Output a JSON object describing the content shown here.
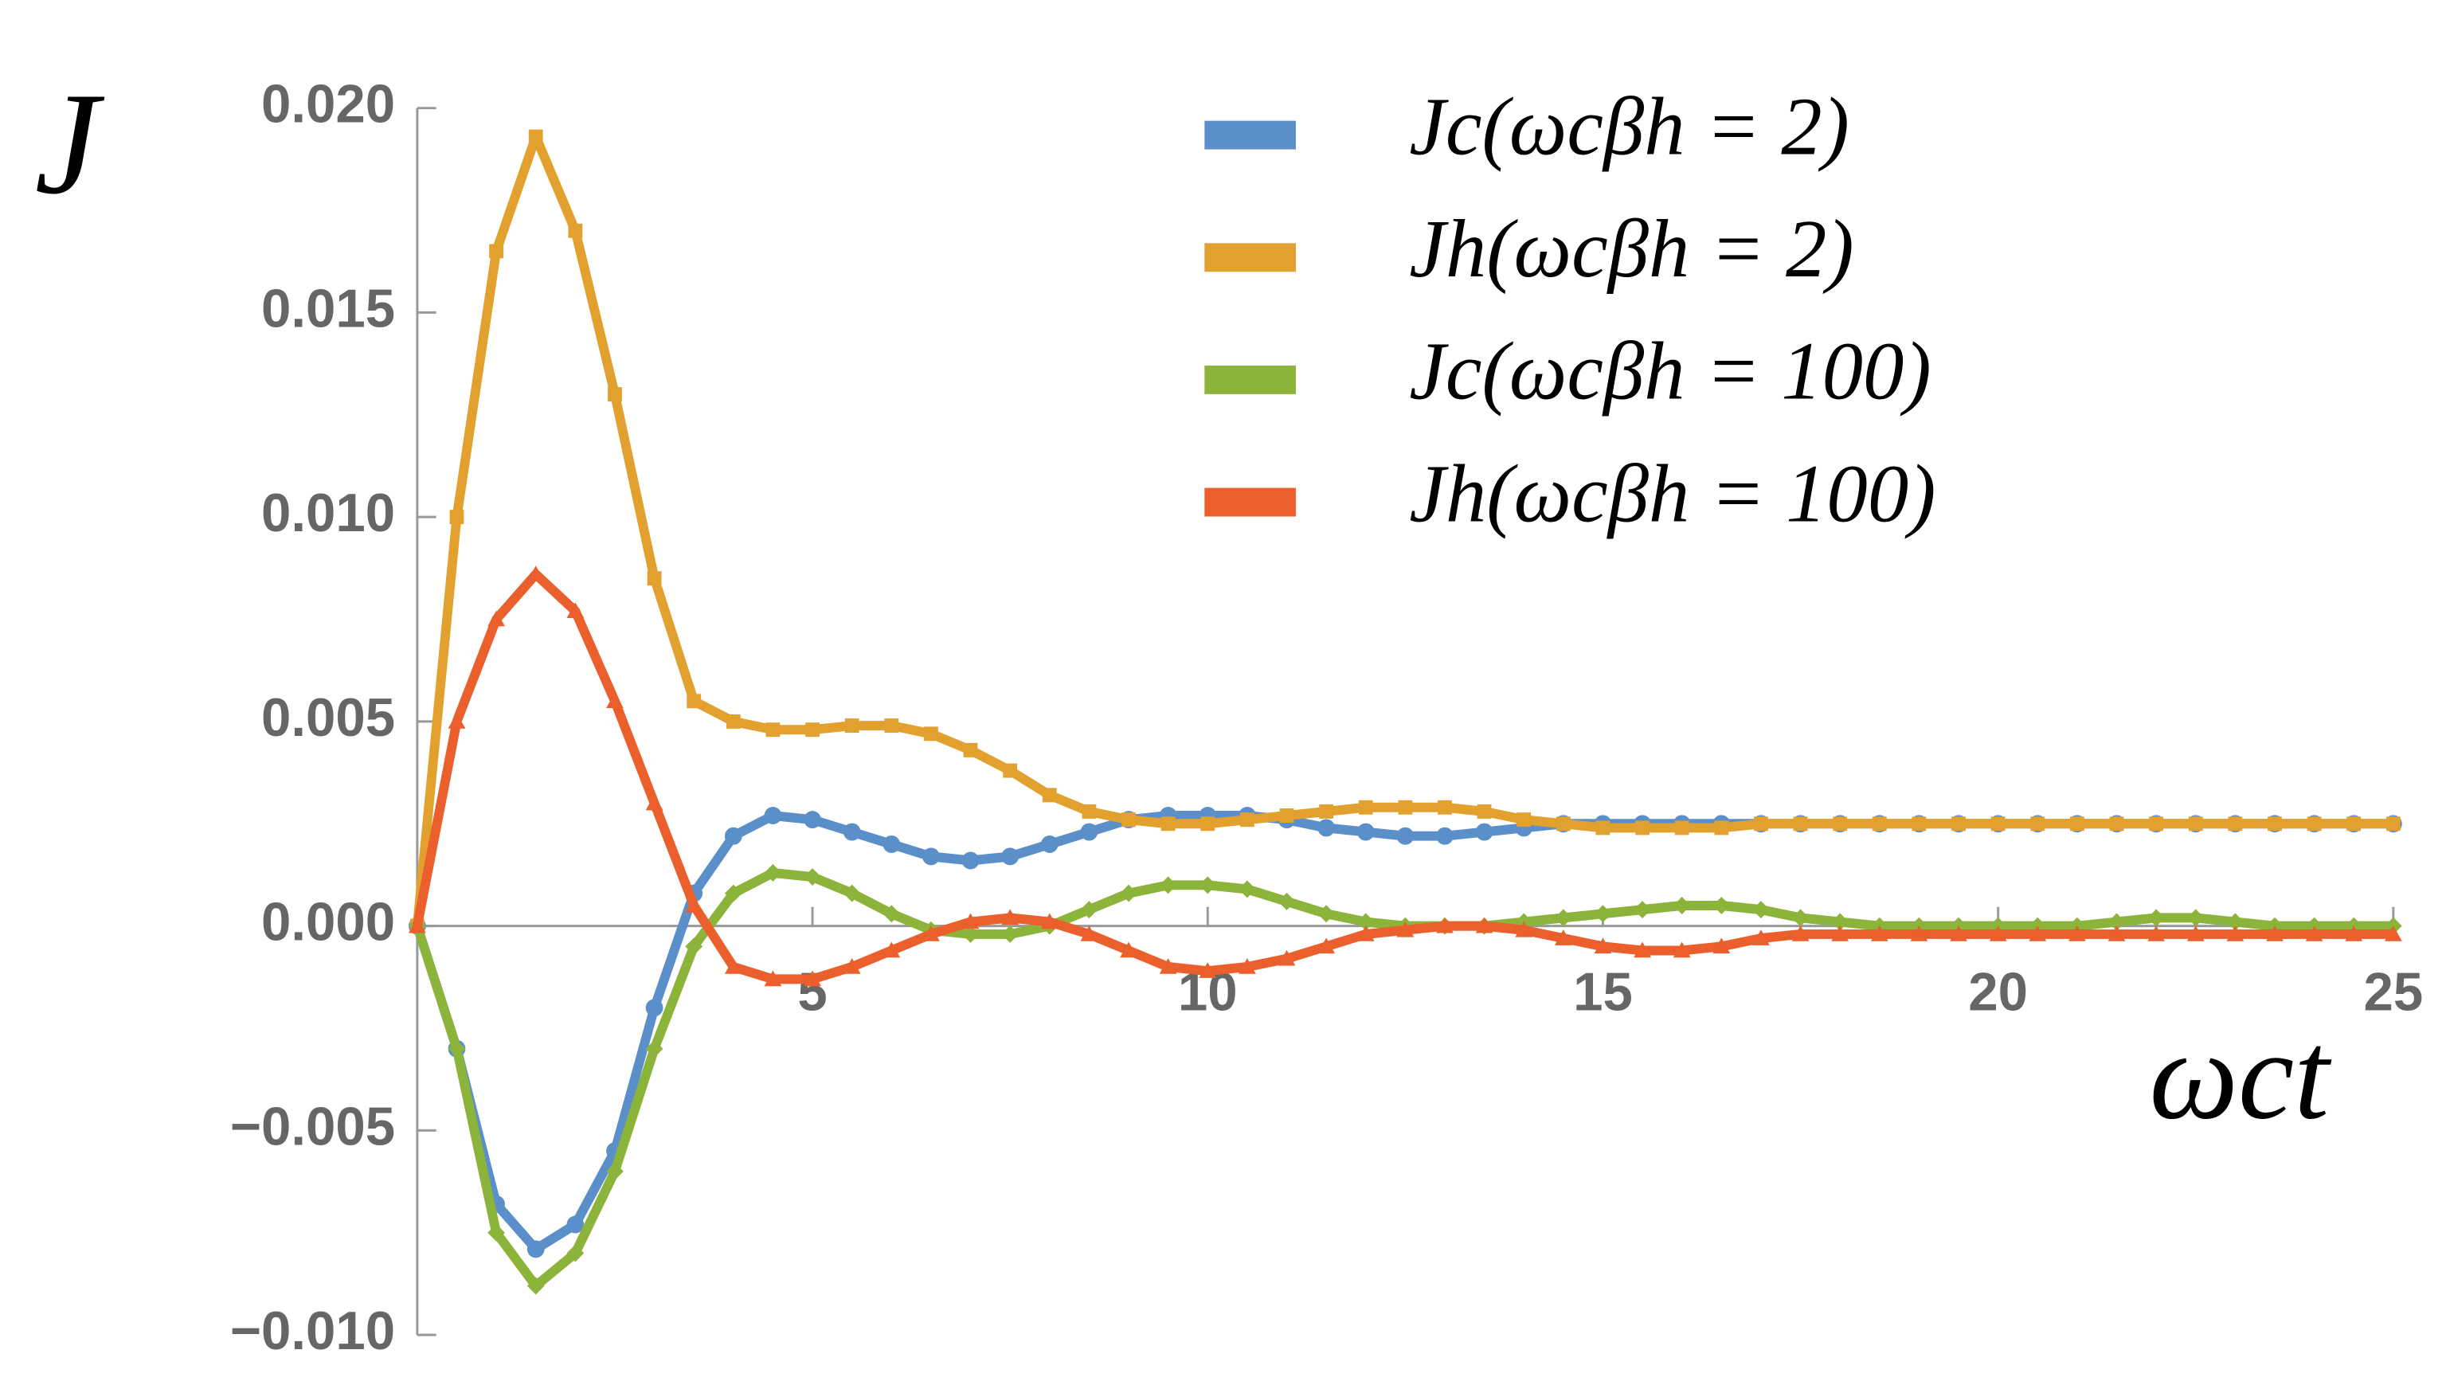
{
  "chart_data": {
    "type": "line",
    "ylabel": "J",
    "xlabel": "ωct",
    "x": [
      0,
      0.5,
      1,
      1.5,
      2,
      2.5,
      3,
      3.5,
      4,
      4.5,
      5,
      5.5,
      6,
      6.5,
      7,
      7.5,
      8,
      8.5,
      9,
      9.5,
      10,
      10.5,
      11,
      11.5,
      12,
      12.5,
      13,
      13.5,
      14,
      14.5,
      15,
      15.5,
      16,
      16.5,
      17,
      17.5,
      18,
      18.5,
      19,
      19.5,
      20,
      20.5,
      21,
      21.5,
      22,
      22.5,
      23,
      23.5,
      24,
      24.5,
      25
    ],
    "series": [
      {
        "name": "Jc(ωcβh = 2)",
        "color": "#5b8fc9",
        "marker": "circle",
        "values": [
          0,
          -0.003,
          -0.0068,
          -0.0079,
          -0.0073,
          -0.0055,
          -0.002,
          0.0008,
          0.0022,
          0.0027,
          0.0026,
          0.0023,
          0.002,
          0.0017,
          0.0016,
          0.0017,
          0.002,
          0.0023,
          0.0026,
          0.0027,
          0.0027,
          0.0027,
          0.0026,
          0.0024,
          0.0023,
          0.0022,
          0.0022,
          0.0023,
          0.0024,
          0.0025,
          0.0025,
          0.0025,
          0.0025,
          0.0025,
          0.0025,
          0.0025,
          0.0025,
          0.0025,
          0.0025,
          0.0025,
          0.0025,
          0.0025,
          0.0025,
          0.0025,
          0.0025,
          0.0025,
          0.0025,
          0.0025,
          0.0025,
          0.0025,
          0.0025
        ]
      },
      {
        "name": "Jh(ωcβh = 2)",
        "color": "#e2a12e",
        "marker": "square",
        "values": [
          0,
          0.01,
          0.0165,
          0.0193,
          0.017,
          0.013,
          0.0085,
          0.0055,
          0.005,
          0.0048,
          0.0048,
          0.0049,
          0.0049,
          0.0047,
          0.0043,
          0.0038,
          0.0032,
          0.0028,
          0.0026,
          0.0025,
          0.0025,
          0.0026,
          0.0027,
          0.0028,
          0.0029,
          0.0029,
          0.0029,
          0.0028,
          0.0026,
          0.0025,
          0.0024,
          0.0024,
          0.0024,
          0.0024,
          0.0025,
          0.0025,
          0.0025,
          0.0025,
          0.0025,
          0.0025,
          0.0025,
          0.0025,
          0.0025,
          0.0025,
          0.0025,
          0.0025,
          0.0025,
          0.0025,
          0.0025,
          0.0025,
          0.0025
        ]
      },
      {
        "name": "Jc(ωcβh = 100)",
        "color": "#8cb33a",
        "marker": "diamond",
        "values": [
          0,
          -0.003,
          -0.0075,
          -0.0088,
          -0.008,
          -0.006,
          -0.003,
          -0.0005,
          0.0008,
          0.0013,
          0.0012,
          0.0008,
          0.0003,
          -0.0001,
          -0.0002,
          -0.0002,
          0,
          0.0004,
          0.0008,
          0.001,
          0.001,
          0.0009,
          0.0006,
          0.0003,
          0.0001,
          0,
          0,
          0,
          0.0001,
          0.0002,
          0.0003,
          0.0004,
          0.0005,
          0.0005,
          0.0004,
          0.0002,
          0.0001,
          0,
          0,
          0,
          0,
          0,
          0,
          0.0001,
          0.0002,
          0.0002,
          0.0001,
          0,
          0,
          0,
          0
        ]
      },
      {
        "name": "Jh(ωcβh = 100)",
        "color": "#ea5f2c",
        "marker": "triangle",
        "values": [
          0,
          0.005,
          0.0075,
          0.0086,
          0.0077,
          0.0055,
          0.003,
          0.0005,
          -0.001,
          -0.0013,
          -0.0013,
          -0.001,
          -0.0006,
          -0.0002,
          0.0001,
          0.0002,
          0.0001,
          -0.0002,
          -0.0006,
          -0.001,
          -0.0011,
          -0.001,
          -0.0008,
          -0.0005,
          -0.0002,
          -0.0001,
          0,
          0,
          -0.0001,
          -0.0003,
          -0.0005,
          -0.0006,
          -0.0006,
          -0.0005,
          -0.0003,
          -0.0002,
          -0.0002,
          -0.0002,
          -0.0002,
          -0.0002,
          -0.0002,
          -0.0002,
          -0.0002,
          -0.0002,
          -0.0002,
          -0.0002,
          -0.0002,
          -0.0002,
          -0.0002,
          -0.0002,
          -0.0002
        ]
      }
    ],
    "xlim": [
      0,
      25
    ],
    "xticks": [
      5,
      10,
      15,
      20,
      25
    ],
    "ylim": [
      -0.01,
      0.02
    ],
    "yticks": [
      {
        "value": -0.01,
        "label": "−0.010"
      },
      {
        "value": -0.005,
        "label": "−0.005"
      },
      {
        "value": 0,
        "label": "0.000"
      },
      {
        "value": 0.005,
        "label": "0.005"
      },
      {
        "value": 0.01,
        "label": "0.010"
      },
      {
        "value": 0.015,
        "label": "0.015"
      },
      {
        "value": 0.02,
        "label": "0.020"
      }
    ],
    "legend": "upper right"
  }
}
